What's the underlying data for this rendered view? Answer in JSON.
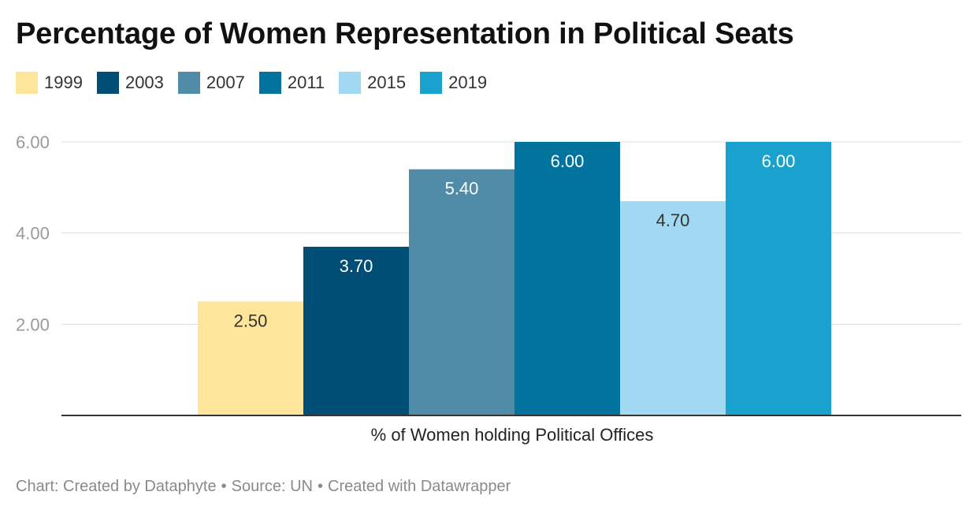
{
  "chart_data": {
    "type": "bar",
    "title": "Percentage of Women Representation in Political Seats",
    "xlabel": "",
    "ylabel": "",
    "categories": [
      "% of Women holding Political Offices"
    ],
    "series": [
      {
        "name": "1999",
        "values": [
          2.5
        ],
        "label": "2.50",
        "color": "#fee59c"
      },
      {
        "name": "2003",
        "values": [
          3.7
        ],
        "label": "3.70",
        "color": "#004d75"
      },
      {
        "name": "2007",
        "values": [
          5.4
        ],
        "label": "5.40",
        "color": "#508ca8"
      },
      {
        "name": "2011",
        "values": [
          6.0
        ],
        "label": "6.00",
        "color": "#01739c"
      },
      {
        "name": "2015",
        "values": [
          4.7
        ],
        "label": "4.70",
        "color": "#a1d8f2"
      },
      {
        "name": "2019",
        "values": [
          6.0
        ],
        "label": "6.00",
        "color": "#1aa2cf"
      }
    ],
    "yticks": [
      "2.00",
      "4.00",
      "6.00"
    ],
    "ytick_values": [
      2,
      4,
      6
    ],
    "ylim": [
      0,
      6
    ],
    "grid": true,
    "legend": "top-left"
  },
  "footer": {
    "created_by": "Chart: Created by Dataphyte",
    "source": "Source: UN",
    "tool": "Created with Datawrapper",
    "separator": "•"
  }
}
